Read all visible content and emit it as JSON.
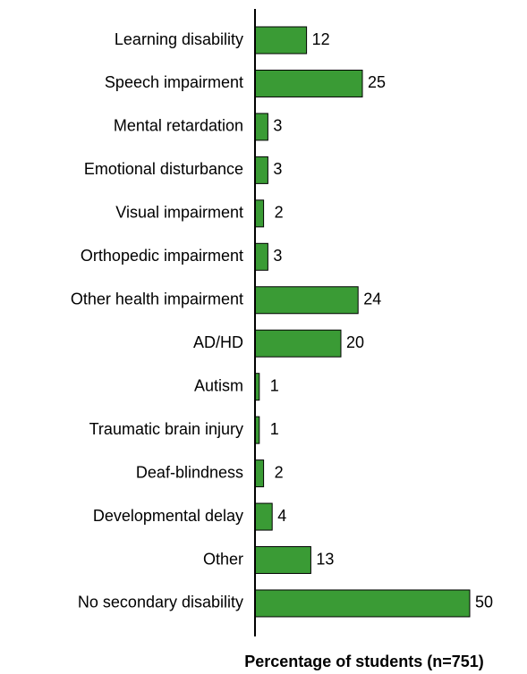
{
  "chart_data": {
    "type": "barh",
    "categories": [
      "Learning disability",
      "Speech impairment",
      "Mental retardation",
      "Emotional disturbance",
      "Visual impairment",
      "Orthopedic impairment",
      "Other health impairment",
      "AD/HD",
      "Autism",
      "Traumatic brain injury",
      "Deaf-blindness",
      "Developmental delay",
      "Other",
      "No secondary disability"
    ],
    "values": [
      12,
      25,
      3,
      3,
      2,
      3,
      24,
      20,
      1,
      1,
      2,
      4,
      13,
      50
    ],
    "color": "#3a9b35",
    "xlim": [
      0,
      50
    ],
    "xlabel": "Percentage of students (n=751)"
  }
}
